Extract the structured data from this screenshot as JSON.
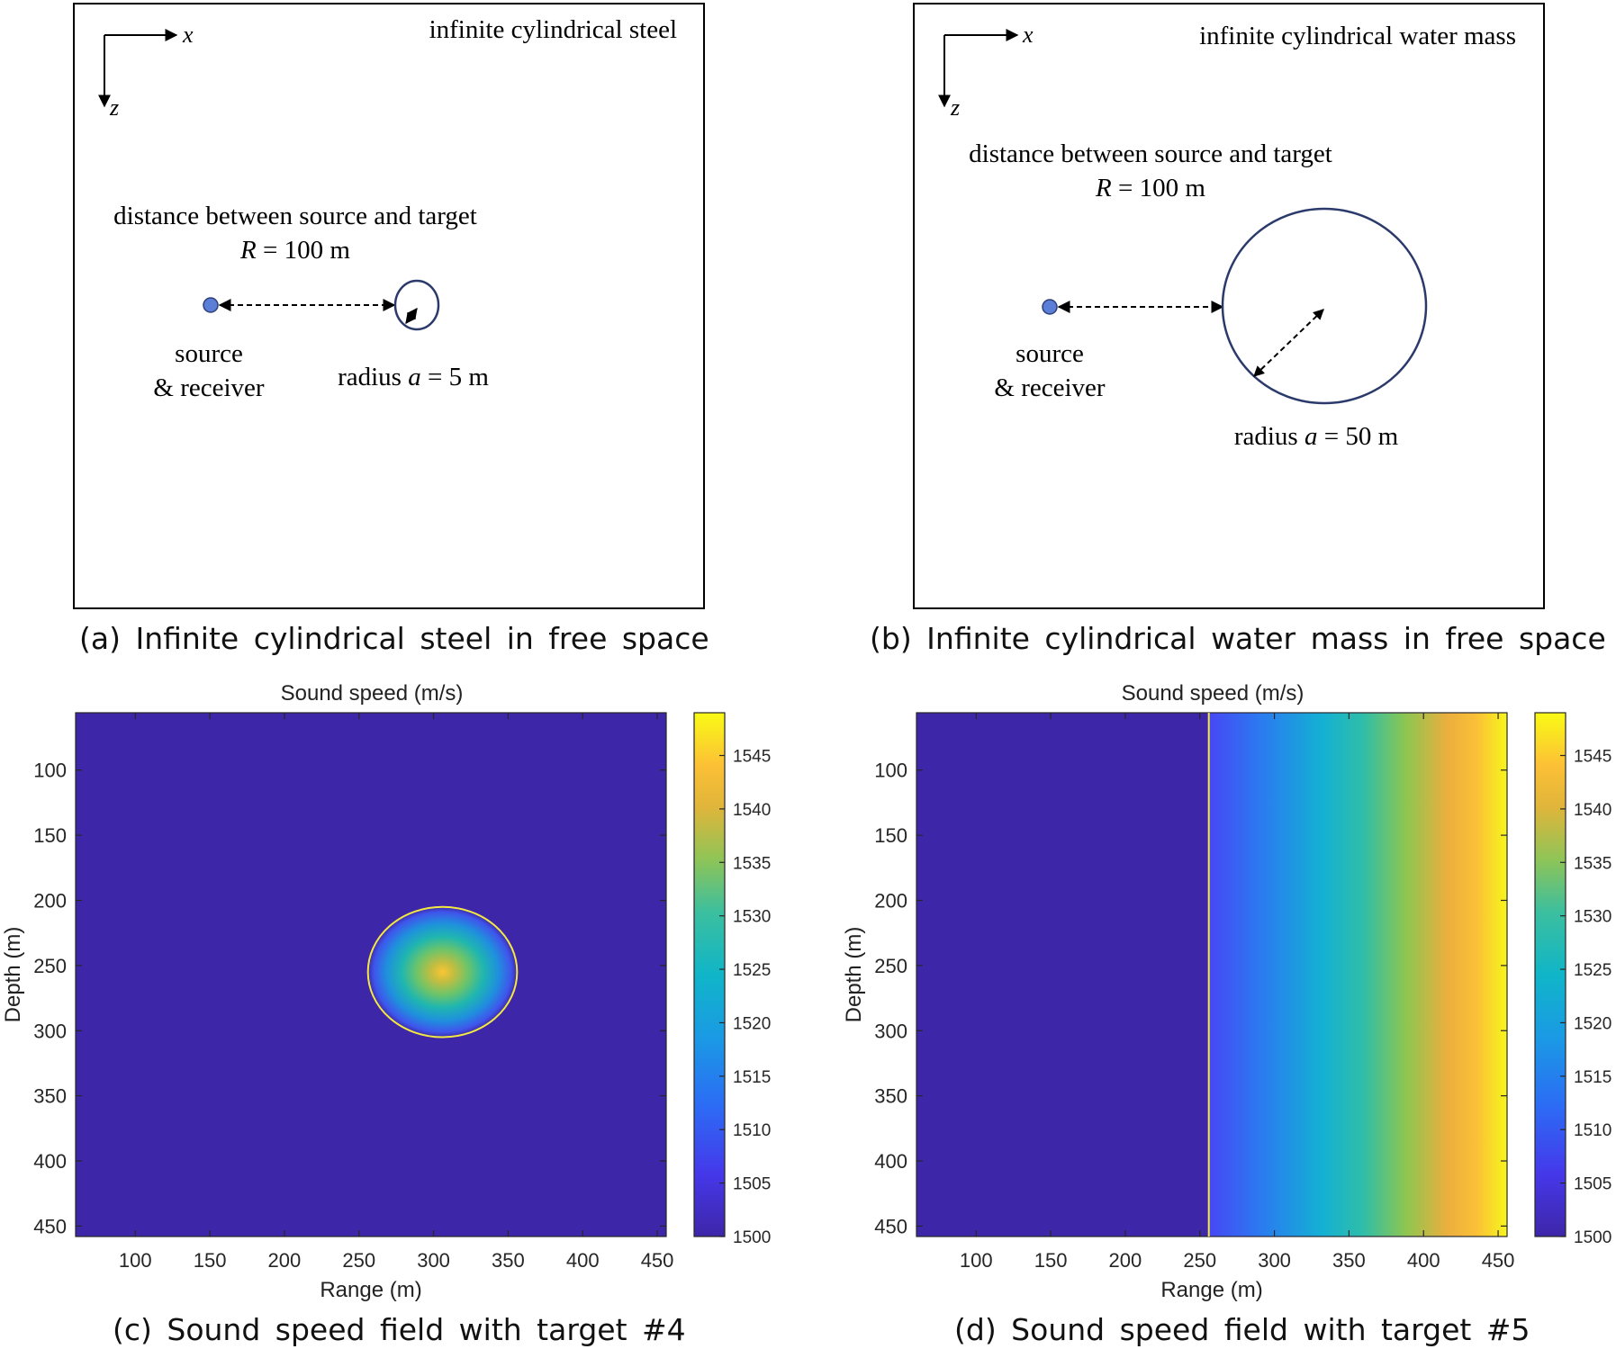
{
  "panels": {
    "a": {
      "caption": "(a) Infinite cylindrical steel in free space",
      "box_label": "infinite cylindrical steel",
      "axis_x": "x",
      "axis_z": "z",
      "distance_label": "distance between source and target",
      "distance_prefix": "R",
      "distance_value": " = 100 m",
      "source_line1": "source",
      "source_line2": "& receiver",
      "radius_prefix": "radius ",
      "radius_var": "a",
      "radius_value": " = 5 m"
    },
    "b": {
      "caption": "(b) Infinite cylindrical water mass in free space",
      "box_label": "infinite cylindrical water mass",
      "axis_x": "x",
      "axis_z": "z",
      "distance_label": "distance between source and target",
      "distance_prefix": "R",
      "distance_value": " = 100 m",
      "source_line1": "source",
      "source_line2": "& receiver",
      "radius_prefix": "radius ",
      "radius_var": "a",
      "radius_value": " = 50 m"
    },
    "c": {
      "caption": "(c) Sound speed field with target #4"
    },
    "d": {
      "caption": "(d) Sound speed field with target #5"
    }
  },
  "chart_data": [
    {
      "type": "heatmap",
      "title": "Sound speed (m/s)",
      "xlabel": "Range (m)",
      "ylabel": "Depth (m)",
      "xlim": [
        60,
        456
      ],
      "ylim": [
        56,
        458
      ],
      "y_reversed": true,
      "xticks": [
        100,
        150,
        200,
        250,
        300,
        350,
        400,
        450
      ],
      "yticks": [
        100,
        150,
        200,
        250,
        300,
        350,
        400,
        450
      ],
      "background_value": 1500,
      "target": {
        "shape": "circle",
        "center_range": 306,
        "center_depth": 255,
        "radius": 50,
        "peak_value": 1545,
        "edge_value": 1500
      },
      "colorbar": {
        "min": 1500,
        "max": 1549,
        "ticks": [
          1500,
          1505,
          1510,
          1515,
          1520,
          1525,
          1530,
          1535,
          1540,
          1545
        ]
      },
      "colormap": "parula"
    },
    {
      "type": "heatmap",
      "title": "Sound speed (m/s)",
      "xlabel": "Range (m)",
      "ylabel": "Depth (m)",
      "xlim": [
        60,
        456
      ],
      "ylim": [
        56,
        458
      ],
      "y_reversed": true,
      "xticks": [
        100,
        150,
        200,
        250,
        300,
        350,
        400,
        450
      ],
      "yticks": [
        100,
        150,
        200,
        250,
        300,
        350,
        400,
        450
      ],
      "background_value": 1500,
      "boundary_range": 256,
      "gradient": {
        "start_range": 256,
        "start_value": 1505,
        "end_range": 456,
        "end_value": 1549
      },
      "colorbar": {
        "min": 1500,
        "max": 1549,
        "ticks": [
          1500,
          1505,
          1510,
          1515,
          1520,
          1525,
          1530,
          1535,
          1540,
          1545
        ]
      },
      "colormap": "parula"
    }
  ]
}
